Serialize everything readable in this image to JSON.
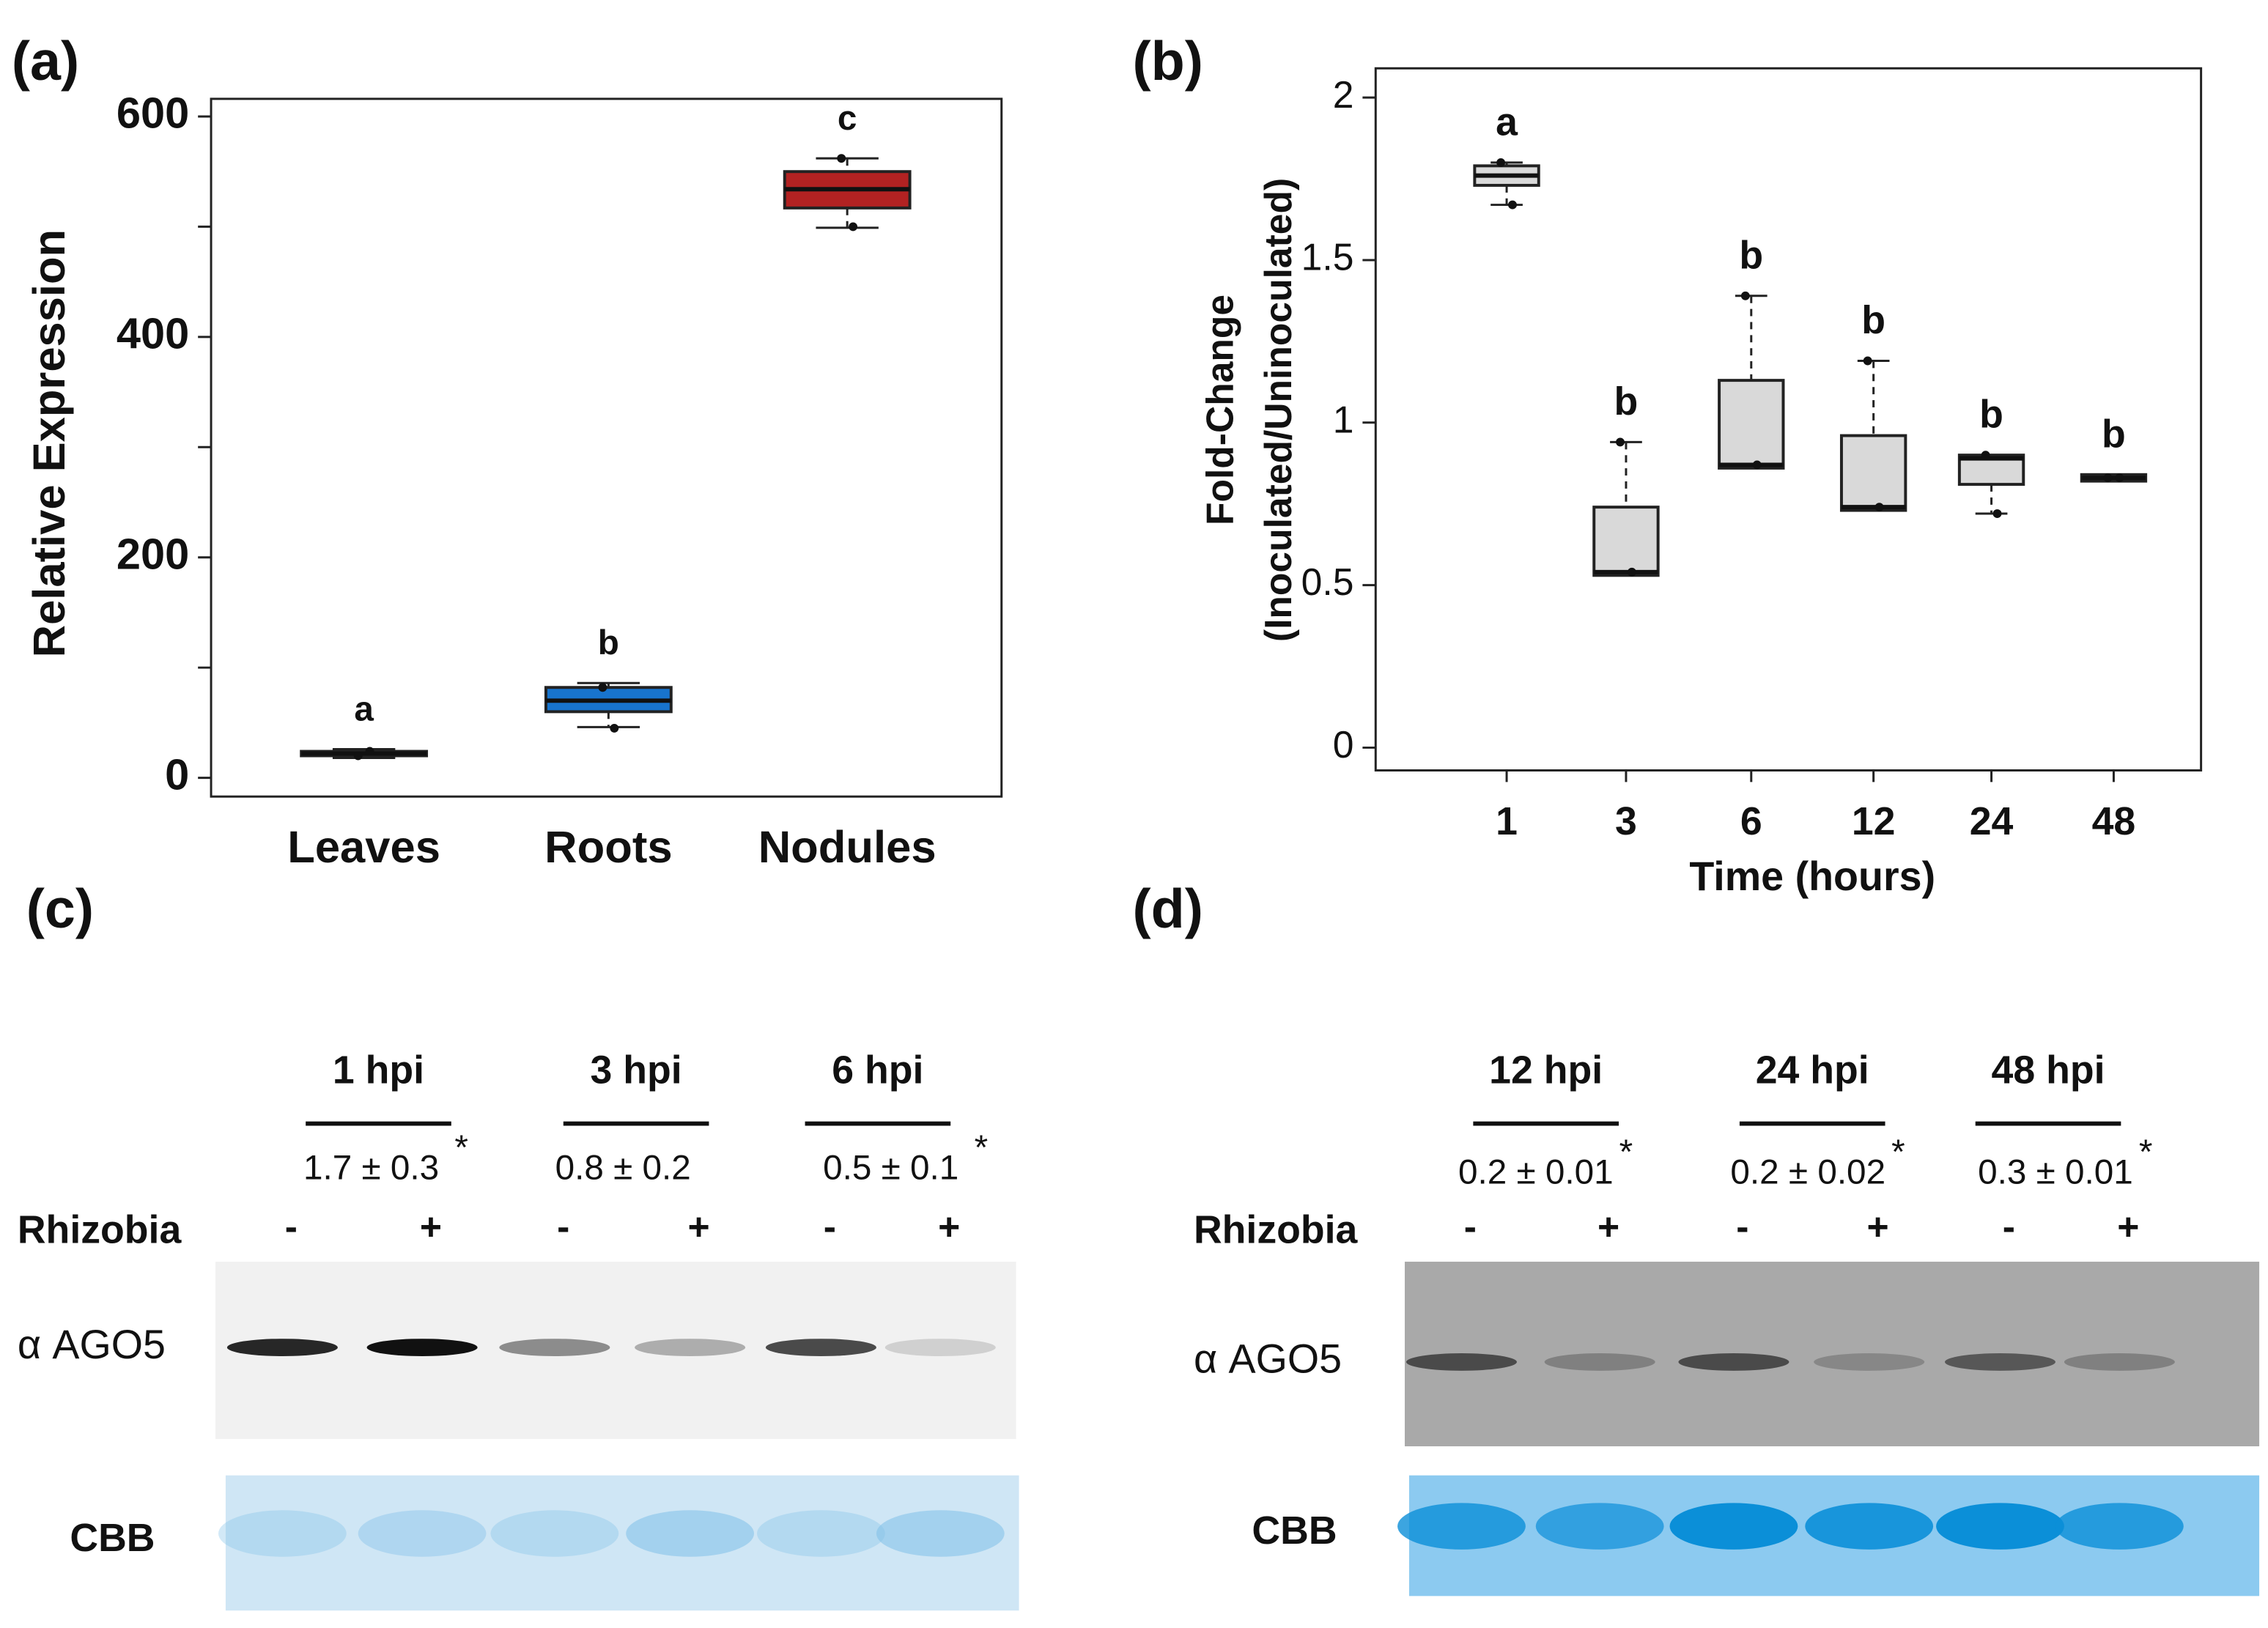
{
  "chart_data": [
    {
      "type": "box",
      "panel": "(a)",
      "y_label": "Relative Expression",
      "categories": [
        "Leaves",
        "Roots",
        "Nodules"
      ],
      "colors": [
        "#3a3a3a",
        "#1874cd",
        "#b22222"
      ],
      "boxes": [
        {
          "min": 18,
          "q1": 20,
          "median": 22,
          "q3": 24,
          "max": 26
        },
        {
          "min": 46,
          "q1": 60,
          "median": 70,
          "q3": 82,
          "max": 86
        },
        {
          "min": 499,
          "q1": 517,
          "median": 534,
          "q3": 550,
          "max": 562
        }
      ],
      "points": [
        [
          20,
          24
        ],
        [
          82,
          45
        ],
        [
          562,
          500
        ]
      ],
      "annotations": [
        "a",
        "b",
        "c"
      ],
      "ylim": [
        -17,
        616
      ],
      "yticks": [
        0,
        200,
        400,
        600
      ],
      "yminor": [
        100,
        300,
        500
      ]
    },
    {
      "type": "box",
      "panel": "(b)",
      "x_label": "Time (hours)",
      "y_label": [
        "Fold-Change",
        "(Inoculated/Uninoculated)"
      ],
      "categories": [
        "1",
        "3",
        "6",
        "12",
        "24",
        "48"
      ],
      "color": "#d9d9d9",
      "boxes": [
        {
          "min": 1.67,
          "q1": 1.73,
          "median": 1.76,
          "q3": 1.79,
          "max": 1.8
        },
        {
          "min": 0.53,
          "q1": 0.53,
          "median": 0.54,
          "q3": 0.74,
          "max": 0.94
        },
        {
          "min": 0.86,
          "q1": 0.86,
          "median": 0.87,
          "q3": 1.13,
          "max": 1.39
        },
        {
          "min": 0.73,
          "q1": 0.73,
          "median": 0.74,
          "q3": 0.96,
          "max": 1.19
        },
        {
          "min": 0.72,
          "q1": 0.81,
          "median": 0.89,
          "q3": 0.9,
          "max": 0.9
        },
        {
          "min": 0.82,
          "q1": 0.82,
          "median": 0.83,
          "q3": 0.84,
          "max": 0.84
        }
      ],
      "points": [
        [
          1.8,
          1.67
        ],
        [
          0.94,
          0.54
        ],
        [
          1.39,
          0.87
        ],
        [
          1.19,
          0.74
        ],
        [
          0.9,
          0.72
        ],
        [
          0.83,
          0.83
        ]
      ],
      "annotations": [
        "a",
        "b",
        "b",
        "b",
        "b",
        "b"
      ],
      "ylim": [
        -0.07,
        2.09
      ],
      "yticks": [
        0,
        0.5,
        1,
        1.5,
        2
      ]
    }
  ],
  "blots": [
    {
      "panel": "(c)",
      "treatment_label": "Rhizobia",
      "treatments": [
        "-",
        "+"
      ],
      "antibody": "α AGO5",
      "loading": "CBB",
      "groups": [
        {
          "label": "1 hpi",
          "ratio": "1.7 ± 0.3",
          "significance": "*"
        },
        {
          "label": "3 hpi",
          "ratio": "0.8 ± 0.2"
        },
        {
          "label": "6 hpi",
          "ratio": "0.5 ± 0.1",
          "significance": "*"
        }
      ]
    },
    {
      "panel": "(d)",
      "treatment_label": "Rhizobia",
      "treatments": [
        "-",
        "+"
      ],
      "antibody": "α AGO5",
      "loading": "CBB",
      "groups": [
        {
          "label": "12 hpi",
          "ratio": "0.2 ± 0.01",
          "significance": "*"
        },
        {
          "label": "24 hpi",
          "ratio": "0.2 ± 0.02",
          "significance": "*"
        },
        {
          "label": "48 hpi",
          "ratio": "0.3 ± 0.01",
          "significance": "*"
        }
      ]
    }
  ]
}
